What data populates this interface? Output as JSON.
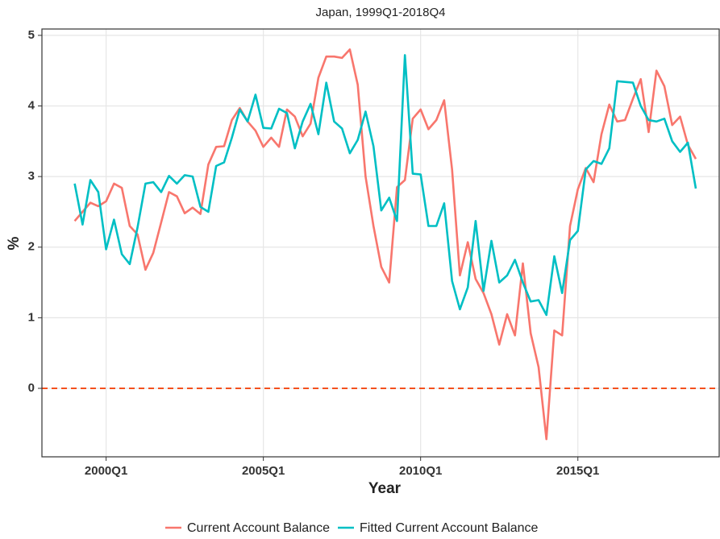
{
  "chart_data": {
    "type": "line",
    "title": "Japan, 1999Q1-2018Q4",
    "x_label": "Year",
    "y_label": "%",
    "categories": [
      null,
      null,
      null,
      null,
      "2000Q1",
      null,
      null,
      null,
      null,
      null,
      null,
      null,
      null,
      null,
      null,
      null,
      null,
      null,
      null,
      null,
      null,
      null,
      null,
      null,
      "2005Q1",
      null,
      null,
      null,
      null,
      null,
      null,
      null,
      null,
      null,
      null,
      null,
      null,
      null,
      null,
      null,
      null,
      null,
      null,
      null,
      "2010Q1",
      null,
      null,
      null,
      null,
      null,
      null,
      null,
      null,
      null,
      null,
      null,
      null,
      null,
      null,
      null,
      null,
      null,
      null,
      null,
      "2015Q1",
      null,
      null,
      null,
      null,
      null,
      null,
      null,
      null,
      null,
      null,
      null,
      null,
      null,
      null,
      null
    ],
    "series": [
      {
        "name": "Current Account Balance",
        "color": "#F8766D",
        "values": [
          2.37,
          2.5,
          2.63,
          2.58,
          2.65,
          2.9,
          2.84,
          2.3,
          2.18,
          1.68,
          1.92,
          2.35,
          2.78,
          2.72,
          2.48,
          2.56,
          2.47,
          3.17,
          3.42,
          3.43,
          3.8,
          3.97,
          3.78,
          3.65,
          3.42,
          3.55,
          3.42,
          3.95,
          3.85,
          3.57,
          3.75,
          4.4,
          4.7,
          4.7,
          4.68,
          4.8,
          4.3,
          3.0,
          2.3,
          1.72,
          1.5,
          2.85,
          2.95,
          3.82,
          3.95,
          3.67,
          3.8,
          4.08,
          3.1,
          1.6,
          2.07,
          1.55,
          1.35,
          1.05,
          0.62,
          1.05,
          0.75,
          1.77,
          0.78,
          0.3,
          -0.72,
          0.82,
          0.75,
          2.3,
          2.82,
          3.12,
          2.92,
          3.6,
          4.02,
          3.78,
          3.8,
          4.1,
          4.38,
          3.63,
          4.5,
          4.28,
          3.73,
          3.85,
          3.45,
          3.25
        ]
      },
      {
        "name": "Fitted Current Account Balance",
        "color": "#00BFC4",
        "values": [
          2.9,
          2.32,
          2.95,
          2.78,
          1.97,
          2.39,
          1.9,
          1.76,
          2.28,
          2.9,
          2.92,
          2.78,
          3.01,
          2.9,
          3.02,
          3.0,
          2.57,
          2.5,
          3.15,
          3.2,
          3.55,
          3.95,
          3.78,
          4.16,
          3.69,
          3.68,
          3.96,
          3.9,
          3.4,
          3.78,
          4.03,
          3.6,
          4.33,
          3.78,
          3.68,
          3.33,
          3.52,
          3.92,
          3.43,
          2.52,
          2.7,
          2.37,
          4.72,
          3.04,
          3.03,
          2.3,
          2.3,
          2.62,
          1.52,
          1.12,
          1.43,
          2.37,
          1.38,
          2.09,
          1.5,
          1.6,
          1.82,
          1.5,
          1.23,
          1.25,
          1.04,
          1.87,
          1.35,
          2.1,
          2.23,
          3.1,
          3.22,
          3.18,
          3.4,
          4.35,
          4.34,
          4.33,
          4.0,
          3.8,
          3.78,
          3.82,
          3.5,
          3.35,
          3.48,
          2.83
        ]
      }
    ],
    "ylim": [
      -0.97,
      5.09
    ],
    "yticks": [
      0,
      1,
      2,
      3,
      4,
      5
    ],
    "hline": 0,
    "hline_color": "#F4511E",
    "grid": true,
    "legend": "bottom"
  }
}
